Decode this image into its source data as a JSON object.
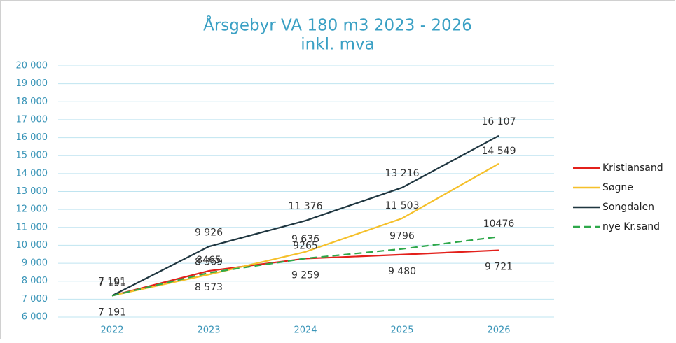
{
  "chart_data": {
    "type": "line",
    "title": "Årsgebyr VA 180 m3 2023 - 2026",
    "subtitle": "inkl. mva",
    "categories": [
      "2022",
      "2023",
      "2024",
      "2025",
      "2026"
    ],
    "series": [
      {
        "name": "Kristiansand",
        "color": "#e3201b",
        "dash": false,
        "values": [
          7191,
          8573,
          9259,
          9480,
          9721
        ],
        "value_labels": [
          "7 191",
          "8 573",
          "9 259",
          "9 480",
          "9 721"
        ]
      },
      {
        "name": "Søgne",
        "color": "#f5c02a",
        "dash": false,
        "values": [
          7191,
          8369,
          9636,
          11503,
          14549
        ],
        "value_labels": [
          "7 191",
          "8 369",
          "9 636",
          "11 503",
          "14 549"
        ]
      },
      {
        "name": "Songdalen",
        "color": "#1f3640",
        "dash": false,
        "values": [
          7191,
          9926,
          11376,
          13216,
          16107
        ],
        "value_labels": [
          "7 191",
          "9 926",
          "11 376",
          "13 216",
          "16 107"
        ]
      },
      {
        "name": "nye Kr.sand",
        "color": "#2ea84a",
        "dash": true,
        "values": [
          7191,
          8465,
          9265,
          9796,
          10476
        ],
        "value_labels": [
          null,
          "8465",
          "9265",
          "9796",
          "10476"
        ]
      }
    ],
    "ylim": [
      6000,
      20000
    ],
    "yticks": [
      {
        "value": 6000,
        "label": "6 000"
      },
      {
        "value": 7000,
        "label": "7 000"
      },
      {
        "value": 8000,
        "label": "8 000"
      },
      {
        "value": 9000,
        "label": "9 000"
      },
      {
        "value": 10000,
        "label": "10 000"
      },
      {
        "value": 11000,
        "label": "11 000"
      },
      {
        "value": 12000,
        "label": "12 000"
      },
      {
        "value": 13000,
        "label": "13 000"
      },
      {
        "value": 14000,
        "label": "14 000"
      },
      {
        "value": 15000,
        "label": "15 000"
      },
      {
        "value": 16000,
        "label": "16 000"
      },
      {
        "value": 17000,
        "label": "17 000"
      },
      {
        "value": 18000,
        "label": "18 000"
      },
      {
        "value": 19000,
        "label": "19 000"
      },
      {
        "value": 20000,
        "label": "20 000"
      }
    ],
    "grid": true,
    "legend": "right"
  }
}
